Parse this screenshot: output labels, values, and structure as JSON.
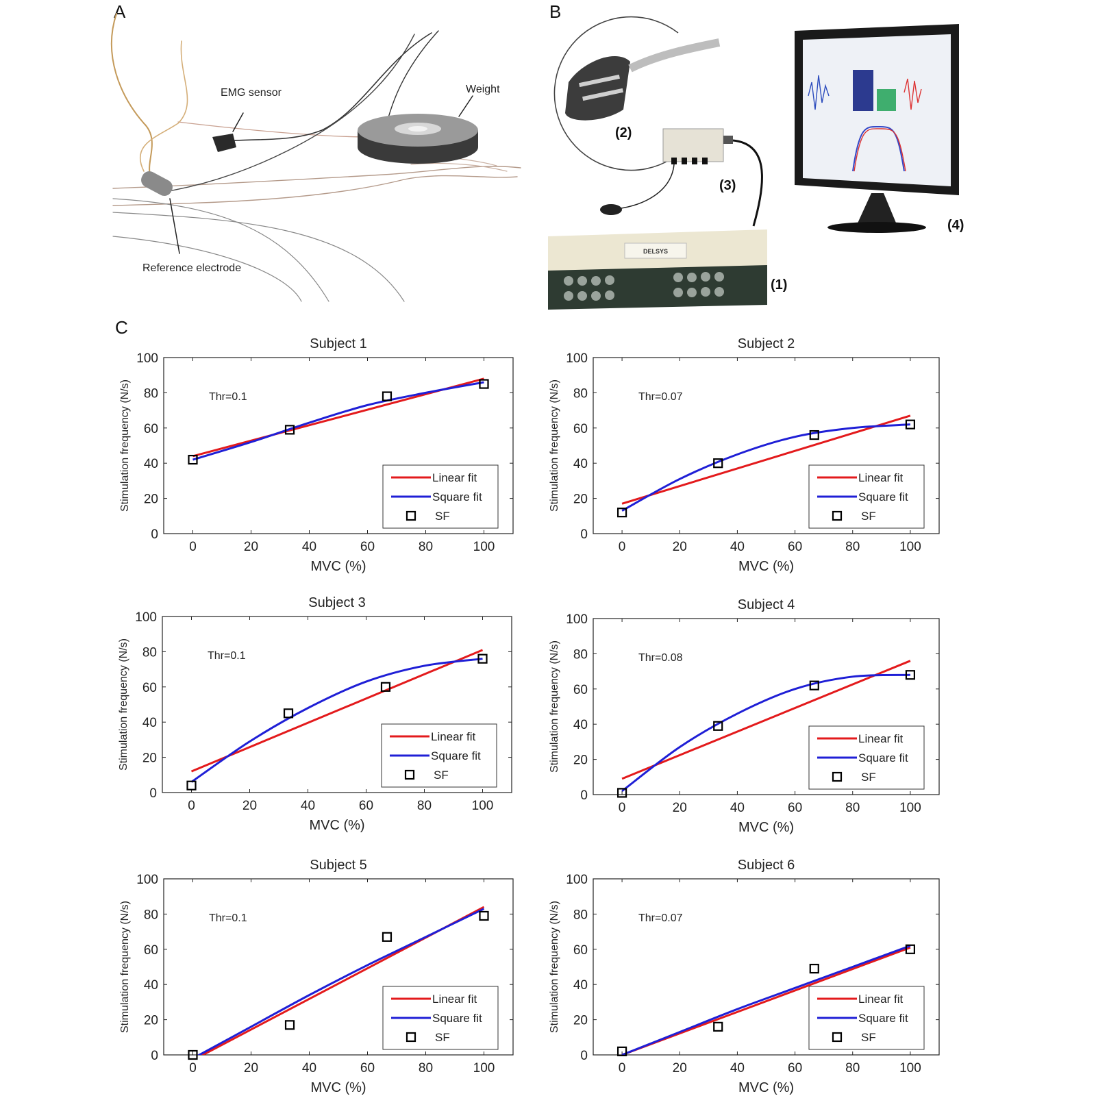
{
  "panels": {
    "a": {
      "letter": "A",
      "labels": {
        "emg": "EMG sensor",
        "weight": "Weight",
        "reference": "Reference electrode"
      }
    },
    "b": {
      "letter": "B",
      "items": [
        "(1)",
        "(2)",
        "(3)",
        "(4)"
      ],
      "brand": "DELSYS"
    },
    "c": {
      "letter": "C"
    }
  },
  "chart_data": [
    {
      "type": "line",
      "title": "Subject 1",
      "xlabel": "MVC (%)",
      "ylabel": "Stimulation frequency (N/s)",
      "xlim": [
        -10,
        110
      ],
      "ylim": [
        0,
        100
      ],
      "xticks": [
        0,
        20,
        40,
        60,
        80,
        100
      ],
      "yticks": [
        0,
        20,
        40,
        60,
        80,
        100
      ],
      "annotation": "Thr=0.1",
      "legend": [
        "Linear fit",
        "Square fit",
        "SF"
      ],
      "points": {
        "name": "SF",
        "x": [
          0,
          33.3,
          66.7,
          100
        ],
        "y": [
          42,
          59,
          78,
          85
        ]
      },
      "linear_fit": {
        "name": "Linear fit",
        "x": [
          0,
          100
        ],
        "y": [
          44,
          88
        ]
      },
      "square_fit": {
        "name": "Square fit",
        "x": [
          0,
          20,
          40,
          60,
          80,
          100
        ],
        "y": [
          42,
          52,
          63,
          73,
          80,
          86
        ]
      }
    },
    {
      "type": "line",
      "title": "Subject 2",
      "xlabel": "MVC (%)",
      "ylabel": "Stimulation frequency (N/s)",
      "xlim": [
        -10,
        110
      ],
      "ylim": [
        0,
        100
      ],
      "xticks": [
        0,
        20,
        40,
        60,
        80,
        100
      ],
      "yticks": [
        0,
        20,
        40,
        60,
        80,
        100
      ],
      "annotation": "Thr=0.07",
      "legend": [
        "Linear fit",
        "Square fit",
        "SF"
      ],
      "points": {
        "name": "SF",
        "x": [
          0,
          33.3,
          66.7,
          100
        ],
        "y": [
          12,
          40,
          56,
          62
        ]
      },
      "linear_fit": {
        "name": "Linear fit",
        "x": [
          0,
          100
        ],
        "y": [
          17,
          67
        ]
      },
      "square_fit": {
        "name": "Square fit",
        "x": [
          0,
          20,
          40,
          60,
          80,
          100
        ],
        "y": [
          13,
          31,
          45,
          55,
          60,
          62
        ]
      }
    },
    {
      "type": "line",
      "title": "Subject 3",
      "xlabel": "MVC (%)",
      "ylabel": "Stimulation frequency (N/s)",
      "xlim": [
        -10,
        110
      ],
      "ylim": [
        0,
        100
      ],
      "xticks": [
        0,
        20,
        40,
        60,
        80,
        100
      ],
      "yticks": [
        0,
        20,
        40,
        60,
        80,
        100
      ],
      "annotation": "Thr=0.1",
      "legend": [
        "Linear fit",
        "Square fit",
        "SF"
      ],
      "points": {
        "name": "SF",
        "x": [
          0,
          33.3,
          66.7,
          100
        ],
        "y": [
          4,
          45,
          60,
          76
        ]
      },
      "linear_fit": {
        "name": "Linear fit",
        "x": [
          0,
          100
        ],
        "y": [
          12,
          81
        ]
      },
      "square_fit": {
        "name": "Square fit",
        "x": [
          0,
          20,
          40,
          60,
          80,
          100
        ],
        "y": [
          6,
          29,
          48,
          63,
          72,
          76
        ]
      }
    },
    {
      "type": "line",
      "title": "Subject 4",
      "xlabel": "MVC (%)",
      "ylabel": "Stimulation frequency (N/s)",
      "xlim": [
        -10,
        110
      ],
      "ylim": [
        0,
        100
      ],
      "xticks": [
        0,
        20,
        40,
        60,
        80,
        100
      ],
      "yticks": [
        0,
        20,
        40,
        60,
        80,
        100
      ],
      "annotation": "Thr=0.08",
      "legend": [
        "Linear fit",
        "Square fit",
        "SF"
      ],
      "points": {
        "name": "SF",
        "x": [
          0,
          33.3,
          66.7,
          100
        ],
        "y": [
          1,
          39,
          62,
          68
        ]
      },
      "linear_fit": {
        "name": "Linear fit",
        "x": [
          0,
          100
        ],
        "y": [
          9,
          76
        ]
      },
      "square_fit": {
        "name": "Square fit",
        "x": [
          0,
          20,
          40,
          60,
          80,
          100
        ],
        "y": [
          2,
          27,
          46,
          60,
          67,
          68
        ]
      }
    },
    {
      "type": "line",
      "title": "Subject 5",
      "xlabel": "MVC (%)",
      "ylabel": "Stimulation frequency (N/s)",
      "xlim": [
        -10,
        110
      ],
      "ylim": [
        0,
        100
      ],
      "xticks": [
        0,
        20,
        40,
        60,
        80,
        100
      ],
      "yticks": [
        0,
        20,
        40,
        60,
        80,
        100
      ],
      "annotation": "Thr=0.1",
      "legend": [
        "Linear fit",
        "Square fit",
        "SF"
      ],
      "points": {
        "name": "SF",
        "x": [
          0,
          33.3,
          66.7,
          100
        ],
        "y": [
          0,
          17,
          67,
          79
        ]
      },
      "linear_fit": {
        "name": "Linear fit",
        "x": [
          0,
          100
        ],
        "y": [
          -3,
          84
        ]
      },
      "square_fit": {
        "name": "Square fit",
        "x": [
          0,
          20,
          40,
          60,
          80,
          100
        ],
        "y": [
          -2,
          16,
          34,
          51,
          67,
          83
        ]
      }
    },
    {
      "type": "line",
      "title": "Subject 6",
      "xlabel": "MVC (%)",
      "ylabel": "Stimulation frequency (N/s)",
      "xlim": [
        -10,
        110
      ],
      "ylim": [
        0,
        100
      ],
      "xticks": [
        0,
        20,
        40,
        60,
        80,
        100
      ],
      "yticks": [
        0,
        20,
        40,
        60,
        80,
        100
      ],
      "annotation": "Thr=0.07",
      "legend": [
        "Linear fit",
        "Square fit",
        "SF"
      ],
      "points": {
        "name": "SF",
        "x": [
          0,
          33.3,
          66.7,
          100
        ],
        "y": [
          2,
          16,
          49,
          60
        ]
      },
      "linear_fit": {
        "name": "Linear fit",
        "x": [
          0,
          100
        ],
        "y": [
          0,
          61
        ]
      },
      "square_fit": {
        "name": "Square fit",
        "x": [
          0,
          20,
          40,
          60,
          80,
          100
        ],
        "y": [
          0,
          13,
          26,
          38,
          50,
          62
        ]
      }
    }
  ],
  "colors": {
    "linear": "#e31a1c",
    "square": "#1f1fd6",
    "points": "#000000"
  }
}
